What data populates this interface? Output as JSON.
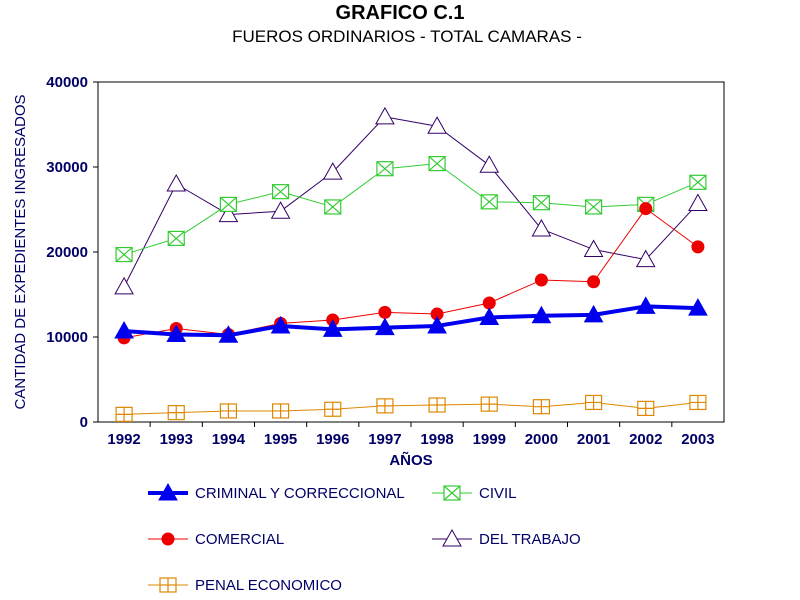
{
  "chart_data": {
    "type": "line",
    "title": "GRAFICO C.1",
    "subtitle": "FUEROS ORDINARIOS  - TOTAL CAMARAS -",
    "xlabel": "AÑOS",
    "ylabel": "CANTIDAD DE EXPEDIENTES INGRESADOS",
    "ylim": [
      0,
      40000
    ],
    "yticks": [
      "0",
      "10000",
      "20000",
      "30000",
      "40000"
    ],
    "grid": false,
    "legend_position": "bottom",
    "categories": [
      "1992",
      "1993",
      "1994",
      "1995",
      "1996",
      "1997",
      "1998",
      "1999",
      "2000",
      "2001",
      "2002",
      "2003"
    ],
    "series": [
      {
        "name": "CRIMINAL Y CORRECCIONAL",
        "color": "#0000ee",
        "marker": "triangle-filled",
        "values": [
          10700,
          10300,
          10200,
          11300,
          10900,
          11100,
          11300,
          12300,
          12500,
          12600,
          13600,
          13400
        ]
      },
      {
        "name": "CIVIL",
        "color": "#33cc33",
        "marker": "square-x",
        "values": [
          19700,
          21600,
          25600,
          27100,
          25300,
          29800,
          30400,
          25900,
          25800,
          25300,
          25600,
          28200
        ]
      },
      {
        "name": "COMERCIAL",
        "color": "#ee0000",
        "marker": "circle-filled",
        "values": [
          9900,
          11000,
          10300,
          11600,
          12000,
          12900,
          12700,
          14000,
          16700,
          16500,
          25100,
          20600
        ]
      },
      {
        "name": "DEL TRABAJO",
        "color": "#330066",
        "marker": "triangle-open",
        "values": [
          15900,
          28000,
          24400,
          24800,
          29400,
          35900,
          34800,
          30200,
          22700,
          20300,
          19100,
          25700
        ]
      },
      {
        "name": "PENAL ECONOMICO",
        "color": "#dd8800",
        "marker": "square-plus",
        "values": [
          900,
          1100,
          1300,
          1300,
          1500,
          1900,
          2000,
          2100,
          1800,
          2300,
          1600,
          2300
        ]
      }
    ]
  }
}
